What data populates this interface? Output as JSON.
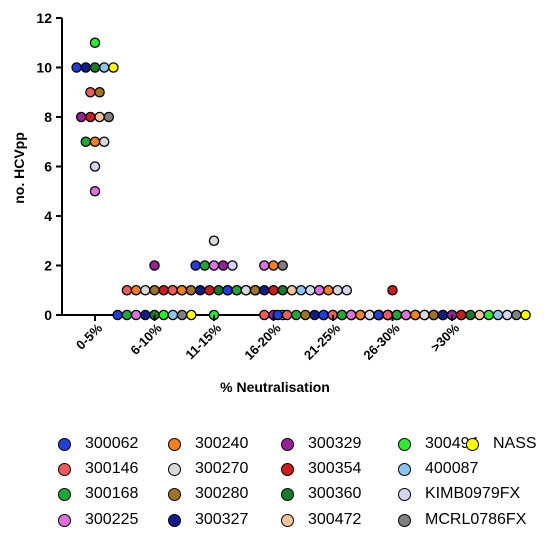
{
  "chart_data": {
    "type": "scatter",
    "title": "",
    "xlabel": "% Neutralisation",
    "ylabel": "no. HCVpp",
    "categories": [
      "0-5%",
      "6-10%",
      "11-15%",
      "16-20%",
      "21-25%",
      "26-30%",
      ">30%"
    ],
    "ylim": [
      0,
      12
    ],
    "yticks": [
      0,
      2,
      4,
      6,
      8,
      10,
      12
    ],
    "grid": false,
    "legend_position": "bottom",
    "series": [
      {
        "name": "300062",
        "color": "#1f3fd6",
        "values": [
          10,
          0,
          2,
          1,
          0,
          0,
          0
        ]
      },
      {
        "name": "300146",
        "color": "#f05a5a",
        "values": [
          9,
          1,
          1,
          0,
          0,
          0,
          0
        ]
      },
      {
        "name": "300168",
        "color": "#1fa83a",
        "values": [
          7,
          0,
          2,
          1,
          0,
          0,
          0
        ]
      },
      {
        "name": "300225",
        "color": "#e070e0",
        "values": [
          5,
          0,
          2,
          2,
          1,
          0,
          0
        ]
      },
      {
        "name": "300240",
        "color": "#f08020",
        "values": [
          7,
          1,
          1,
          2,
          1,
          0,
          0
        ]
      },
      {
        "name": "300270",
        "color": "#d8d8d8",
        "values": [
          7,
          1,
          3,
          1,
          1,
          0,
          0
        ]
      },
      {
        "name": "300280",
        "color": "#a0722a",
        "values": [
          9,
          1,
          1,
          1,
          0,
          0,
          0
        ]
      },
      {
        "name": "300327",
        "color": "#101c8a",
        "values": [
          10,
          0,
          1,
          1,
          0,
          0,
          0
        ]
      },
      {
        "name": "300329",
        "color": "#9a1f9a",
        "values": [
          8,
          2,
          2,
          0,
          0,
          0,
          0
        ]
      },
      {
        "name": "300354",
        "color": "#c81e1e",
        "values": [
          8,
          1,
          1,
          1,
          0,
          1,
          0
        ]
      },
      {
        "name": "300360",
        "color": "#1a7a2a",
        "values": [
          10,
          0,
          1,
          1,
          0,
          0,
          0
        ]
      },
      {
        "name": "300472",
        "color": "#f5c39a",
        "values": [
          8,
          1,
          1,
          1,
          0,
          0,
          0
        ]
      },
      {
        "name": "300494",
        "color": "#2eea2e",
        "values": [
          11,
          0,
          0,
          0,
          0,
          0,
          0
        ]
      },
      {
        "name": "400087",
        "color": "#8cc4f0",
        "values": [
          10,
          0,
          1,
          1,
          0,
          0,
          0
        ]
      },
      {
        "name": "KIMB0979FX",
        "color": "#d4d4f4",
        "values": [
          6,
          1,
          2,
          1,
          1,
          0,
          0
        ]
      },
      {
        "name": "MCRL0786FX",
        "color": "#808080",
        "values": [
          8,
          0,
          1,
          2,
          0,
          0,
          0
        ]
      },
      {
        "name": "NASS",
        "color": "#ffff00",
        "values": [
          10,
          0,
          1,
          1,
          0,
          0,
          0
        ]
      }
    ]
  }
}
